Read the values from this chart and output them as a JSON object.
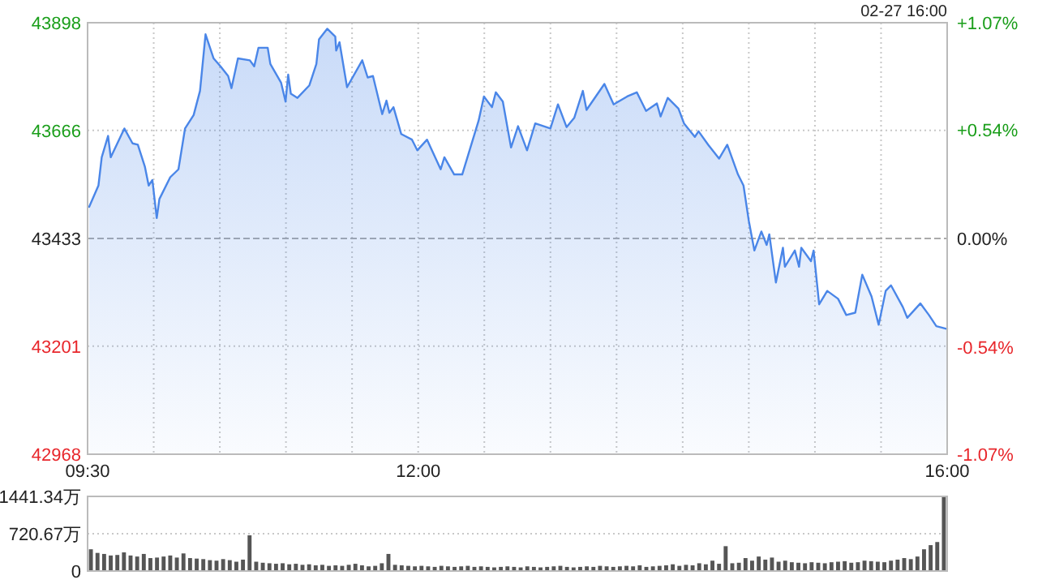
{
  "chart_data": [
    {
      "type": "area",
      "annotations": [
        "02-27 16:00"
      ],
      "x": [
        9.512,
        9.582,
        9.607,
        9.655,
        9.675,
        9.778,
        9.84,
        9.88,
        9.933,
        9.962,
        9.99,
        10.023,
        10.043,
        10.125,
        10.187,
        10.237,
        10.302,
        10.35,
        10.392,
        10.453,
        10.505,
        10.563,
        10.588,
        10.637,
        10.727,
        10.76,
        10.792,
        10.862,
        10.882,
        10.963,
        10.997,
        11.017,
        11.037,
        11.087,
        11.177,
        11.23,
        11.25,
        11.312,
        11.373,
        11.38,
        11.405,
        11.462,
        11.577,
        11.618,
        11.658,
        11.728,
        11.76,
        11.782,
        11.813,
        11.872,
        11.953,
        11.993,
        12.067,
        12.17,
        12.198,
        12.272,
        12.333,
        12.395,
        12.457,
        12.497,
        12.558,
        12.587,
        12.64,
        12.702,
        12.755,
        12.823,
        12.885,
        13.0,
        13.057,
        13.122,
        13.18,
        13.245,
        13.273,
        13.408,
        13.478,
        13.58,
        13.653,
        13.723,
        13.805,
        13.833,
        13.887,
        13.968,
        14.01,
        14.092,
        14.12,
        14.193,
        14.275,
        14.337,
        14.418,
        14.46,
        14.5,
        14.542,
        14.595,
        14.635,
        14.655,
        14.705,
        14.758,
        14.773,
        14.848,
        14.88,
        14.897,
        14.97,
        14.99,
        15.032,
        15.093,
        15.175,
        15.237,
        15.305,
        15.358,
        15.428,
        15.482,
        15.535,
        15.575,
        15.665,
        15.698,
        15.797,
        15.862,
        15.918,
        16.0
      ],
      "series": [
        {
          "color": "#4a86e8",
          "values": [
            43501,
            43547,
            43608,
            43654,
            43608,
            43670,
            43638,
            43635,
            43588,
            43547,
            43559,
            43477,
            43518,
            43565,
            43582,
            43670,
            43699,
            43751,
            43873,
            43821,
            43804,
            43783,
            43757,
            43821,
            43817,
            43804,
            43844,
            43844,
            43809,
            43769,
            43728,
            43786,
            43745,
            43736,
            43763,
            43809,
            43862,
            43885,
            43868,
            43838,
            43856,
            43759,
            43817,
            43780,
            43783,
            43701,
            43730,
            43704,
            43716,
            43658,
            43646,
            43623,
            43646,
            43582,
            43608,
            43571,
            43571,
            43629,
            43687,
            43739,
            43716,
            43748,
            43728,
            43629,
            43675,
            43623,
            43681,
            43670,
            43722,
            43673,
            43693,
            43751,
            43710,
            43766,
            43722,
            43739,
            43748,
            43708,
            43724,
            43696,
            43736,
            43713,
            43681,
            43652,
            43664,
            43635,
            43605,
            43635,
            43571,
            43547,
            43471,
            43407,
            43448,
            43419,
            43442,
            43338,
            43413,
            43372,
            43407,
            43372,
            43413,
            43384,
            43407,
            43291,
            43320,
            43303,
            43268,
            43273,
            43355,
            43308,
            43247,
            43320,
            43332,
            43285,
            43262,
            43293,
            43268,
            43244,
            43238
          ]
        }
      ],
      "xlim": [
        9.5,
        16
      ],
      "xticks": [
        {
          "value": 9.5,
          "label": "09:30"
        },
        {
          "value": 10,
          "label": null
        },
        {
          "value": 10.5,
          "label": null
        },
        {
          "value": 11,
          "label": null
        },
        {
          "value": 11.5,
          "label": null
        },
        {
          "value": 12,
          "label": "12:00"
        },
        {
          "value": 12.5,
          "label": null
        },
        {
          "value": 13,
          "label": null
        },
        {
          "value": 13.5,
          "label": null
        },
        {
          "value": 14,
          "label": null
        },
        {
          "value": 14.5,
          "label": null
        },
        {
          "value": 15,
          "label": null
        },
        {
          "value": 15.5,
          "label": null
        },
        {
          "value": 16,
          "label": "16:00"
        }
      ],
      "ylim": [
        42968,
        43898
      ],
      "yticks": [
        42968,
        43201,
        43433,
        43666,
        43898
      ],
      "y2lim": [
        -1.07,
        1.07
      ],
      "y2ticks": [
        {
          "value": -1.07,
          "label": "-1.07%"
        },
        {
          "value": -0.54,
          "label": "-0.54%"
        },
        {
          "value": 0,
          "label": "0.00%"
        },
        {
          "value": 0.54,
          "label": "+0.54%"
        },
        {
          "value": 1.07,
          "label": "+1.07%"
        }
      ],
      "ref_lines": [
        {
          "axis": "y",
          "value": 43433,
          "line_style": "dashed",
          "color": "#aaaaaa"
        }
      ],
      "grid": true
    },
    {
      "type": "bar",
      "tick_labels": "y",
      "grid": "y",
      "categories": [
        null,
        null,
        null,
        null,
        null,
        null,
        null,
        null,
        null,
        null,
        null,
        null,
        null,
        null,
        null,
        null,
        null,
        null,
        null,
        null,
        null,
        null,
        null,
        null,
        null,
        null,
        null,
        null,
        null,
        null,
        null,
        null,
        null,
        null,
        null,
        null,
        null,
        null,
        null,
        null,
        null,
        null,
        null,
        null,
        null,
        null,
        null,
        null,
        null,
        null,
        null,
        null,
        null,
        null,
        null,
        null,
        null,
        null,
        null,
        null,
        null,
        null,
        null,
        null,
        null,
        null,
        null,
        null,
        null,
        null,
        null,
        null,
        null,
        null,
        null,
        null,
        null,
        null,
        null,
        null,
        null,
        null,
        null,
        null,
        null,
        null,
        null,
        null,
        null,
        null,
        null,
        null,
        null,
        null,
        null,
        null,
        null,
        null,
        null,
        null,
        null,
        null,
        null,
        null,
        null,
        null,
        null,
        null,
        null,
        null,
        null,
        null,
        null,
        null,
        null,
        null,
        null,
        null,
        null,
        null,
        null,
        null,
        null,
        null,
        null,
        null,
        null,
        null,
        null,
        null
      ],
      "values": [
        420,
        350,
        330,
        300,
        310,
        360,
        300,
        280,
        330,
        250,
        260,
        280,
        300,
        260,
        340,
        250,
        240,
        230,
        210,
        200,
        230,
        210,
        180,
        220,
        690,
        180,
        160,
        150,
        140,
        150,
        130,
        140,
        120,
        130,
        110,
        120,
        100,
        110,
        100,
        120,
        140,
        110,
        90,
        100,
        150,
        330,
        120,
        110,
        100,
        90,
        100,
        90,
        80,
        100,
        90,
        80,
        90,
        100,
        80,
        90,
        80,
        70,
        80,
        90,
        80,
        70,
        90,
        80,
        70,
        80,
        90,
        100,
        80,
        70,
        80,
        90,
        80,
        100,
        90,
        80,
        90,
        100,
        90,
        110,
        80,
        90,
        100,
        110,
        130,
        100,
        120,
        110,
        150,
        130,
        200,
        140,
        480,
        150,
        160,
        250,
        200,
        280,
        220,
        260,
        180,
        200,
        170,
        160,
        150,
        170,
        160,
        150,
        170,
        180,
        190,
        160,
        170,
        200,
        190,
        180,
        170,
        200,
        220,
        250,
        230,
        280,
        420,
        500,
        560,
        1441.34
      ],
      "color": "#555555",
      "ylim": [
        0,
        1441.34
      ],
      "yticks": [
        0,
        {
          "value": 720.67,
          "label": "720.67万"
        },
        {
          "value": 1441.34,
          "label": "1441.34万"
        }
      ]
    }
  ]
}
